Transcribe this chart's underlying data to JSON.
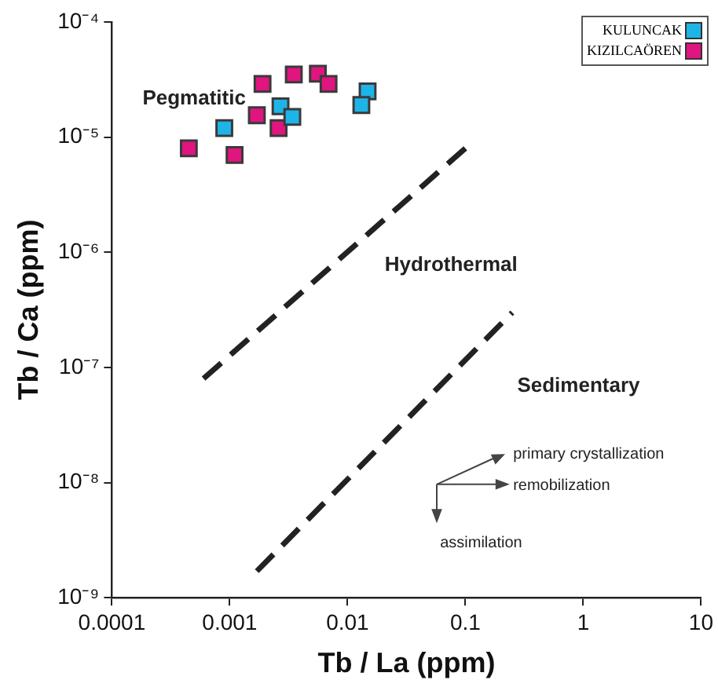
{
  "chart_data": {
    "type": "scatter",
    "xlabel": "Tb / La (ppm)",
    "ylabel": "Tb / Ca (ppm)",
    "log": "xy",
    "grid": false,
    "legend": "top right",
    "marker": "square",
    "xlim": [
      0.0001,
      10
    ],
    "xticks": [
      0.0001,
      0.001,
      0.01,
      0.1,
      1,
      10
    ],
    "ylim": [
      1e-09,
      0.0001
    ],
    "yticks": [
      {
        "value": 1e-09,
        "label": "10⁻⁹"
      },
      {
        "value": 1e-08,
        "label": "10⁻⁸"
      },
      {
        "value": 1e-07,
        "label": "10⁻⁷"
      },
      {
        "value": 1e-06,
        "label": "10⁻⁶"
      },
      {
        "value": 1e-05,
        "label": "10⁻⁵"
      },
      {
        "value": 0.0001,
        "label": "10⁻⁴"
      }
    ],
    "series": [
      {
        "name": "KULUNCAK",
        "color": "#1fb4e8",
        "x": [
          0.0009,
          0.0027,
          0.0034,
          0.0148,
          0.0131
        ],
        "values": [
          1.2e-05,
          1.85e-05,
          1.5e-05,
          2.5e-05,
          1.9e-05
        ]
      },
      {
        "name": "KIZILCAÖREN",
        "color": "#e0157f",
        "x": [
          0.00045,
          0.0011,
          0.0019,
          0.0017,
          0.0026,
          0.0035,
          0.0056,
          0.0069
        ],
        "values": [
          8e-06,
          7e-06,
          2.9e-05,
          1.55e-05,
          1.2e-05,
          3.5e-05,
          3.55e-05,
          2.9e-05
        ]
      },
      {
        "type": "line",
        "color": "#222222",
        "marker": "none",
        "line_style": "dashed",
        "x": [
          0.0006,
          0.1
        ],
        "values": [
          8e-08,
          8e-06
        ]
      },
      {
        "type": "line",
        "color": "#222222",
        "marker": "none",
        "line_style": "dashed",
        "x": [
          0.0017,
          0.25
        ],
        "values": [
          1.7e-09,
          3e-07
        ]
      }
    ],
    "annotations": [
      "Pegmatitic",
      "Hydrothermal",
      "Sedimentary",
      "primary crystallization",
      "remobilization",
      "assimilation"
    ]
  }
}
